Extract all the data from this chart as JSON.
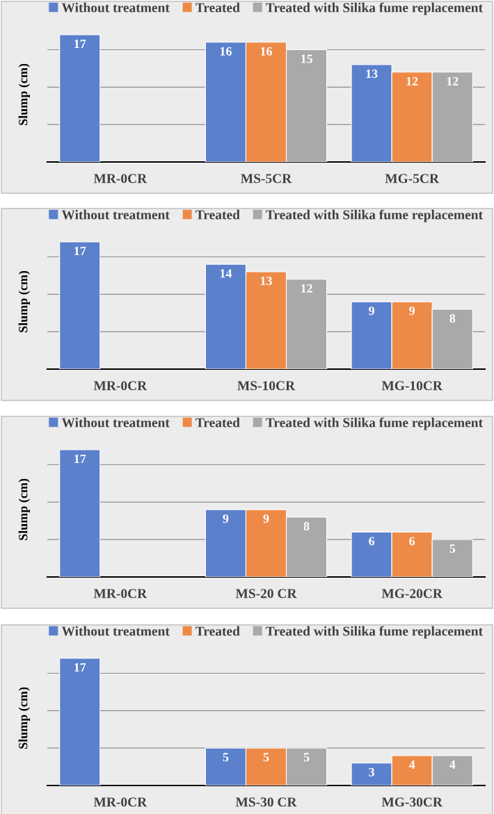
{
  "chart_data": [
    {
      "type": "bar",
      "ylabel": "Slump (cm)",
      "categories": [
        "MR-0CR",
        "MS-5CR",
        "MG-5CR"
      ],
      "series": [
        {
          "name": "Without treatment",
          "color": "#5b80cc",
          "values": [
            17,
            16,
            13
          ]
        },
        {
          "name": "Treated",
          "color": "#ee8a48",
          "values": [
            null,
            16,
            12
          ]
        },
        {
          "name": "Treated with Silika fume replacement",
          "color": "#a9a9a9",
          "values": [
            null,
            15,
            12
          ]
        }
      ],
      "yticks": [
        {
          "value": 0,
          "label": null
        },
        {
          "value": 5,
          "label": null
        },
        {
          "value": 10,
          "label": null
        },
        {
          "value": 15,
          "label": null
        }
      ],
      "tick_labels": "x",
      "grid": "y",
      "legend": "top",
      "data_labels": true
    },
    {
      "type": "bar",
      "ylabel": "Slump (cm)",
      "categories": [
        "MR-0CR",
        "MS-10CR",
        "MG-10CR"
      ],
      "series": [
        {
          "name": "Without treatment",
          "color": "#5b80cc",
          "values": [
            17,
            14,
            9
          ]
        },
        {
          "name": "Treated",
          "color": "#ee8a48",
          "values": [
            null,
            13,
            9
          ]
        },
        {
          "name": "Treated with Silika fume replacement",
          "color": "#a9a9a9",
          "values": [
            null,
            12,
            8
          ]
        }
      ],
      "yticks": [
        {
          "value": 0,
          "label": null
        },
        {
          "value": 5,
          "label": null
        },
        {
          "value": 10,
          "label": null
        },
        {
          "value": 15,
          "label": null
        }
      ],
      "tick_labels": "x",
      "grid": "y",
      "legend": "top",
      "data_labels": true
    },
    {
      "type": "bar",
      "ylabel": "Slump (cm)",
      "categories": [
        "MR-0CR",
        "MS-20 CR",
        "MG-20CR"
      ],
      "series": [
        {
          "name": "Without treatment",
          "color": "#5b80cc",
          "values": [
            17,
            9,
            6
          ]
        },
        {
          "name": "Treated",
          "color": "#ee8a48",
          "values": [
            null,
            9,
            6
          ]
        },
        {
          "name": "Treated with Silika fume replacement",
          "color": "#a9a9a9",
          "values": [
            null,
            8,
            5
          ]
        }
      ],
      "yticks": [
        {
          "value": 0,
          "label": null
        },
        {
          "value": 5,
          "label": null
        },
        {
          "value": 10,
          "label": null
        },
        {
          "value": 15,
          "label": null
        }
      ],
      "tick_labels": "x",
      "grid": "y",
      "legend": "top",
      "data_labels": true
    },
    {
      "type": "bar",
      "ylabel": "Slump (cm)",
      "categories": [
        "MR-0CR",
        "MS-30 CR",
        "MG-30CR"
      ],
      "series": [
        {
          "name": "Without treatment",
          "color": "#5b80cc",
          "values": [
            17,
            5,
            3
          ]
        },
        {
          "name": "Treated",
          "color": "#ee8a48",
          "values": [
            null,
            5,
            4
          ]
        },
        {
          "name": "Treated with Silika fume replacement",
          "color": "#a9a9a9",
          "values": [
            null,
            5,
            4
          ]
        }
      ],
      "yticks": [
        {
          "value": 0,
          "label": null
        },
        {
          "value": 5,
          "label": null
        },
        {
          "value": 10,
          "label": null
        },
        {
          "value": 15,
          "label": null
        }
      ],
      "tick_labels": "x",
      "grid": "y",
      "legend": "top",
      "data_labels": true
    }
  ]
}
